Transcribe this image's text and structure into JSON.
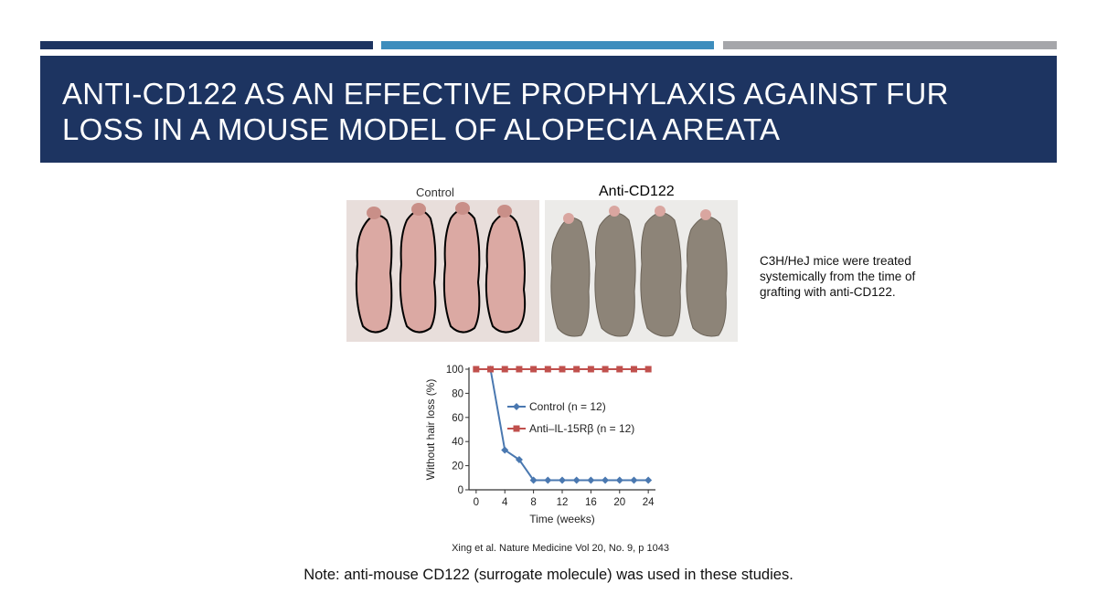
{
  "slide": {
    "title": "Anti-CD122 as an effective prophylaxis against fur loss in a mouse model of alopecia areata",
    "accent_colors": {
      "navy": "#1d3461",
      "blue": "#3d8dbd",
      "gray": "#a5a6aa"
    }
  },
  "figure": {
    "control_label": "Control",
    "anti_label": "Anti-CD122",
    "caption": "C3H/HeJ mice were treated systemically from the time of grafting with anti-CD122."
  },
  "chart_data": {
    "type": "line",
    "xlabel": "Time (weeks)",
    "ylabel": "Without hair loss (%)",
    "xlim": [
      -1,
      25
    ],
    "ylim": [
      0,
      100
    ],
    "x_ticks": [
      "0",
      "4",
      "8",
      "12",
      "16",
      "20",
      "24"
    ],
    "y_ticks": [
      "0",
      "20",
      "40",
      "60",
      "80",
      "100"
    ],
    "legend_position": "right-middle",
    "series": [
      {
        "name": "Control (n = 12)",
        "color": "#4a78b0",
        "marker": "diamond",
        "x": [
          2,
          4,
          6,
          8,
          10,
          12,
          14,
          16,
          18,
          20,
          22,
          24
        ],
        "y": [
          100,
          33,
          25,
          8,
          8,
          8,
          8,
          8,
          8,
          8,
          8,
          8
        ]
      },
      {
        "name": "Anti–IL-15Rβ (n = 12)",
        "color": "#c0504d",
        "marker": "square",
        "x": [
          0,
          2,
          4,
          6,
          8,
          10,
          12,
          14,
          16,
          18,
          20,
          22,
          24
        ],
        "y": [
          100,
          100,
          100,
          100,
          100,
          100,
          100,
          100,
          100,
          100,
          100,
          100,
          100
        ]
      }
    ]
  },
  "citation": "Xing et al. Nature Medicine Vol 20, No. 9, p 1043",
  "note": "Note: anti-mouse CD122 (surrogate molecule) was used in these studies."
}
